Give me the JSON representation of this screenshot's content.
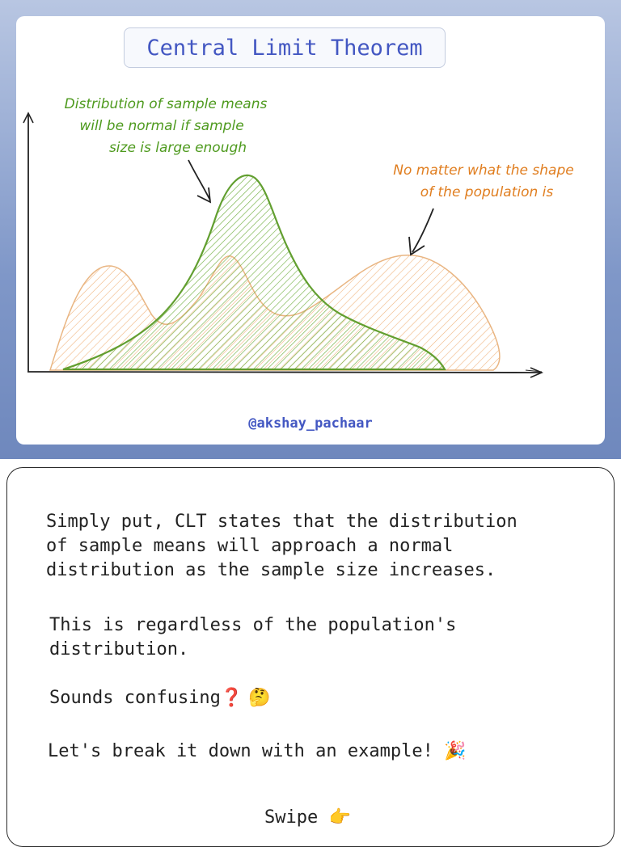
{
  "figure": {
    "title": "Central Limit Theorem",
    "annotation_green": [
      "Distribution of sample means",
      "will be normal if sample",
      "size is large enough"
    ],
    "annotation_orange": [
      "No matter what the shape",
      "of the population is"
    ],
    "handle": "@akshay_pachaar",
    "colors": {
      "title": "#4357c2",
      "green": "#4e9a1e",
      "orange": "#e8892a"
    }
  },
  "text": {
    "para1": "Simply put, CLT states that the distribution\nof sample means will approach a normal\ndistribution as the sample size increases.",
    "para2": "This is regardless of the population's\ndistribution.",
    "para3": "Sounds confusing",
    "para3_emoji": "❓ 🤔",
    "para4": "Let's break it down with an example!",
    "para4_emoji": "🎉",
    "swipe": "Swipe",
    "swipe_emoji": "👉"
  }
}
